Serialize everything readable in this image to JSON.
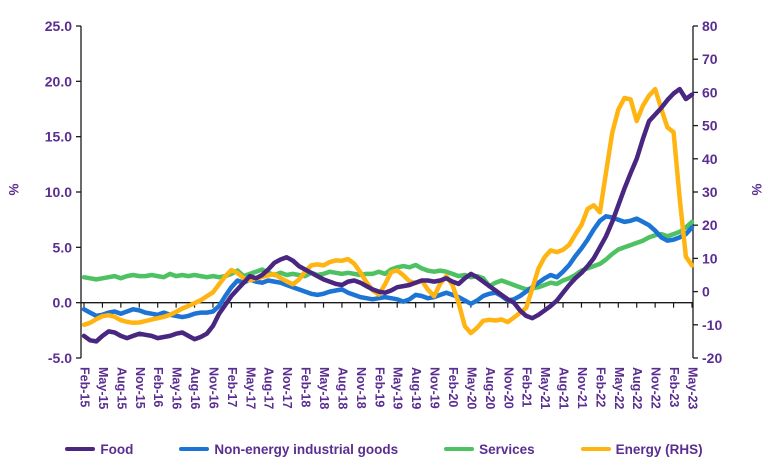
{
  "chart_data": {
    "type": "line",
    "title": "",
    "legend_position": "bottom",
    "grid": false,
    "x_tick_every": 3,
    "x_tick_labels": [
      "Feb-15",
      "May-15",
      "Aug-15",
      "Nov-15",
      "Feb-16",
      "May-16",
      "Aug-16",
      "Nov-16",
      "Feb-17",
      "May-17",
      "Aug-17",
      "Nov-17",
      "Feb-18",
      "May-18",
      "Aug-18",
      "Nov-18",
      "Feb-19",
      "May-19",
      "Aug-19",
      "Nov-19",
      "Feb-20",
      "May-20",
      "Aug-20",
      "Nov-20",
      "Feb-21",
      "May-21",
      "Aug-21",
      "Nov-21",
      "Feb-22",
      "May-22",
      "Aug-22",
      "Nov-22",
      "Feb-23",
      "May-23"
    ],
    "left_axis": {
      "label": "%",
      "min": -5,
      "max": 25,
      "ticks": [
        "25.0",
        "20.0",
        "15.0",
        "10.0",
        "5.0",
        "0.0",
        "-5.0"
      ],
      "tick_values": [
        25,
        20,
        15,
        10,
        5,
        0,
        -5
      ]
    },
    "right_axis": {
      "label": "%",
      "min": -20,
      "max": 80,
      "ticks": [
        "80",
        "70",
        "60",
        "50",
        "40",
        "30",
        "20",
        "10",
        "0",
        "-10",
        "-20"
      ],
      "tick_values": [
        80,
        70,
        60,
        50,
        40,
        30,
        20,
        10,
        0,
        -10,
        -20
      ]
    },
    "series": [
      {
        "name": "Food",
        "axis": "left",
        "color": "#492680",
        "values": [
          -3.0,
          -3.4,
          -3.5,
          -3.0,
          -2.6,
          -2.7,
          -3.0,
          -3.2,
          -3.0,
          -2.8,
          -2.9,
          -3.0,
          -3.2,
          -3.1,
          -3.0,
          -2.8,
          -2.7,
          -3.0,
          -3.3,
          -3.1,
          -2.8,
          -2.1,
          -1.0,
          -0.2,
          0.6,
          1.2,
          1.8,
          2.4,
          2.2,
          2.5,
          3.0,
          3.6,
          3.9,
          4.1,
          3.8,
          3.3,
          3.0,
          2.7,
          2.4,
          2.1,
          1.9,
          1.7,
          1.6,
          1.9,
          2.0,
          1.8,
          1.5,
          1.2,
          1.0,
          0.9,
          1.1,
          1.4,
          1.5,
          1.6,
          1.8,
          2.0,
          2.0,
          1.9,
          2.0,
          2.2,
          1.9,
          1.7,
          2.2,
          2.6,
          2.3,
          1.9,
          1.5,
          1.1,
          0.7,
          0.3,
          0.0,
          -0.7,
          -1.2,
          -1.4,
          -1.1,
          -0.7,
          -0.3,
          0.2,
          0.9,
          1.6,
          2.2,
          2.7,
          3.3,
          4.0,
          5.0,
          6.0,
          7.3,
          8.8,
          10.3,
          11.7,
          13.0,
          14.8,
          16.4,
          17.0,
          17.6,
          18.3,
          18.9,
          19.3,
          18.4,
          18.8
        ]
      },
      {
        "name": "Non-energy industrial goods",
        "axis": "left",
        "color": "#1C74D4",
        "values": [
          -0.6,
          -0.9,
          -1.2,
          -1.1,
          -0.9,
          -0.8,
          -1.0,
          -0.8,
          -0.6,
          -0.7,
          -0.9,
          -1.0,
          -1.1,
          -0.9,
          -1.1,
          -1.2,
          -1.3,
          -1.2,
          -1.0,
          -0.9,
          -0.9,
          -0.8,
          -0.3,
          0.6,
          1.4,
          2.0,
          1.8,
          2.1,
          1.9,
          1.8,
          2.0,
          1.9,
          1.8,
          1.6,
          1.4,
          1.2,
          1.0,
          0.8,
          0.7,
          0.8,
          1.0,
          1.1,
          1.2,
          0.9,
          0.7,
          0.5,
          0.4,
          0.3,
          0.4,
          0.5,
          0.4,
          0.3,
          0.1,
          0.3,
          0.7,
          0.6,
          0.4,
          0.5,
          0.7,
          0.9,
          0.7,
          0.5,
          0.2,
          -0.1,
          0.2,
          0.6,
          0.8,
          0.9,
          0.6,
          0.2,
          0.3,
          0.6,
          1.0,
          1.4,
          1.8,
          2.2,
          2.5,
          2.3,
          2.8,
          3.4,
          4.2,
          4.9,
          5.7,
          6.6,
          7.4,
          7.8,
          7.7,
          7.5,
          7.3,
          7.4,
          7.6,
          7.3,
          7.0,
          6.5,
          5.9,
          5.6,
          5.7,
          5.9,
          6.2,
          6.8
        ]
      },
      {
        "name": "Services",
        "axis": "left",
        "color": "#4EC263",
        "values": [
          2.3,
          2.2,
          2.1,
          2.2,
          2.3,
          2.4,
          2.2,
          2.4,
          2.5,
          2.4,
          2.4,
          2.5,
          2.4,
          2.3,
          2.6,
          2.4,
          2.5,
          2.4,
          2.5,
          2.4,
          2.3,
          2.4,
          2.3,
          2.4,
          2.6,
          2.9,
          2.4,
          2.6,
          2.8,
          3.0,
          2.7,
          2.5,
          2.7,
          2.5,
          2.6,
          2.5,
          2.4,
          2.7,
          2.5,
          2.6,
          2.8,
          2.7,
          2.6,
          2.7,
          2.6,
          2.5,
          2.6,
          2.6,
          2.8,
          2.6,
          3.0,
          3.2,
          3.3,
          3.2,
          3.4,
          3.1,
          2.9,
          2.8,
          2.9,
          2.8,
          2.6,
          2.4,
          2.5,
          2.3,
          2.4,
          2.2,
          1.5,
          1.8,
          2.0,
          1.8,
          1.6,
          1.4,
          1.2,
          1.3,
          1.4,
          1.6,
          1.8,
          1.7,
          2.0,
          2.2,
          2.5,
          2.9,
          3.1,
          3.3,
          3.5,
          3.9,
          4.4,
          4.8,
          5.0,
          5.2,
          5.4,
          5.6,
          5.9,
          6.1,
          6.2,
          6.0,
          6.2,
          6.4,
          6.8,
          7.3
        ]
      },
      {
        "name": "Energy (RHS)",
        "axis": "right",
        "color": "#FFB412",
        "values": [
          -10.0,
          -9.4,
          -8.3,
          -7.4,
          -7.1,
          -7.6,
          -8.6,
          -9.1,
          -9.4,
          -9.3,
          -8.9,
          -8.4,
          -8.0,
          -7.6,
          -7.0,
          -6.1,
          -5.1,
          -4.3,
          -3.5,
          -2.6,
          -1.4,
          -0.2,
          2.2,
          4.6,
          6.5,
          5.6,
          4.0,
          3.4,
          3.9,
          4.4,
          4.9,
          5.3,
          4.1,
          3.1,
          2.2,
          3.6,
          6.0,
          7.9,
          8.2,
          7.9,
          8.9,
          9.4,
          9.3,
          9.8,
          8.4,
          5.8,
          2.8,
          0.4,
          -0.9,
          2.1,
          5.9,
          6.4,
          4.9,
          3.1,
          2.6,
          3.3,
          0.6,
          -1.4,
          2.4,
          4.7,
          2.0,
          -3.4,
          -10.4,
          -12.5,
          -10.9,
          -8.8,
          -8.5,
          -8.7,
          -8.4,
          -9.2,
          -7.8,
          -6.4,
          -4.9,
          0.9,
          7.0,
          10.4,
          12.4,
          11.9,
          12.6,
          14.1,
          17.2,
          20.1,
          24.9,
          26.0,
          23.9,
          35.8,
          47.8,
          54.8,
          58.3,
          57.9,
          51.4,
          56.0,
          59.0,
          61.0,
          55.0,
          49.5,
          48.0,
          28.0,
          10.5,
          7.9
        ]
      }
    ],
    "style": {
      "axis_text_color": "#5A2E90",
      "axis_line_color": "#1a1a1a",
      "background": "#ffffff",
      "line_width": 4.5
    }
  }
}
